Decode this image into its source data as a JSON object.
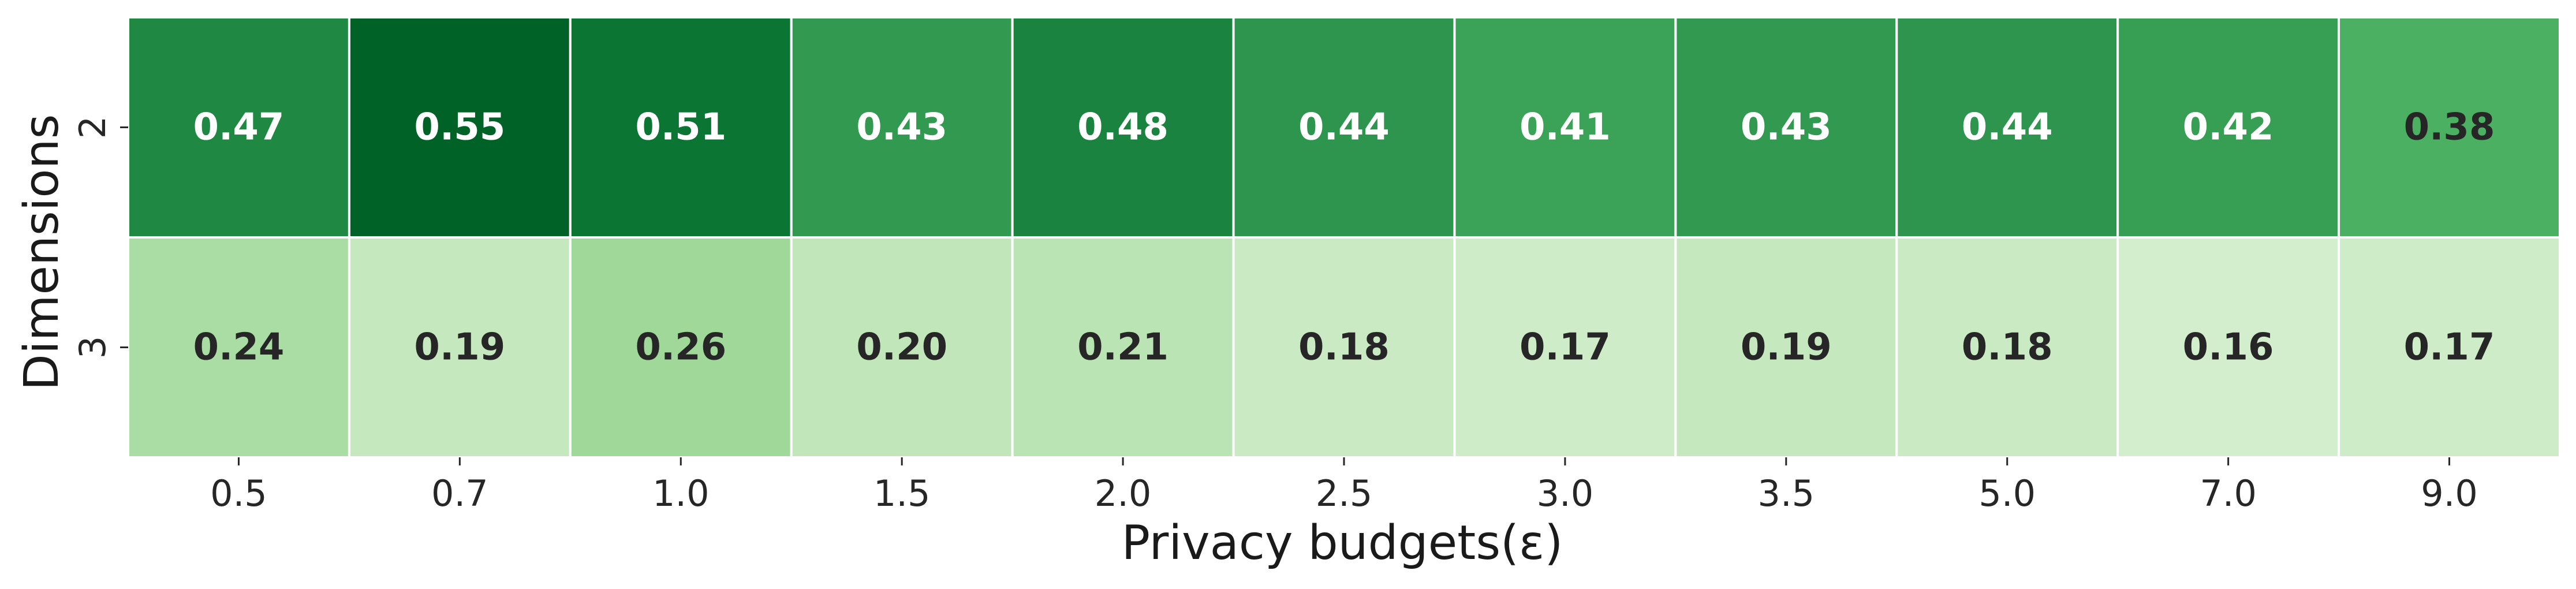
{
  "chart_data": {
    "type": "heatmap",
    "title": "",
    "xlabel": "Privacy budgets(ε)",
    "ylabel": "Dimensions",
    "x_categories": [
      "0.5",
      "0.7",
      "1.0",
      "1.5",
      "2.0",
      "2.5",
      "3.0",
      "3.5",
      "5.0",
      "7.0",
      "9.0"
    ],
    "y_categories": [
      "2",
      "3"
    ],
    "values": [
      [
        0.47,
        0.55,
        0.51,
        0.43,
        0.48,
        0.44,
        0.41,
        0.43,
        0.44,
        0.42,
        0.38
      ],
      [
        0.24,
        0.19,
        0.26,
        0.2,
        0.21,
        0.18,
        0.17,
        0.19,
        0.18,
        0.16,
        0.17
      ]
    ],
    "value_format": "0.00",
    "colormap": "Greens",
    "color_range": [
      0.05,
      0.6
    ],
    "colorbar": false,
    "grid_line_color": "#ffffff",
    "text_colors": {
      "dark_cells": "#ffffff",
      "light_cells": "#262626"
    }
  }
}
